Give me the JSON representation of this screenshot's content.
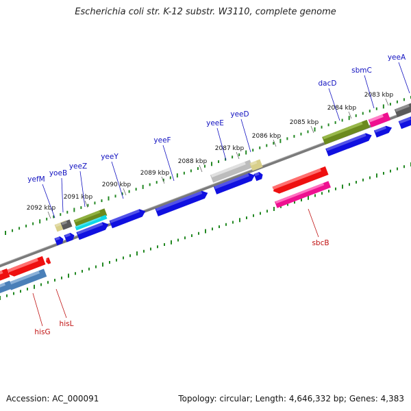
{
  "header": {
    "title": "Escherichia coli str. K-12 substr. W3110, complete genome"
  },
  "footer": {
    "accession": "Accession: AC_000091",
    "summary": "Topology: circular; Length: 4,646,332 bp; Genes: 4,383"
  },
  "ruler": {
    "ticks": [
      {
        "label": "2092 kbp"
      },
      {
        "label": "2091 kbp"
      },
      {
        "label": "2090 kbp"
      },
      {
        "label": "2089 kbp"
      },
      {
        "label": "2088 kbp"
      },
      {
        "label": "2087 kbp"
      },
      {
        "label": "2086 kbp"
      },
      {
        "label": "2085 kbp"
      },
      {
        "label": "2084 kbp"
      },
      {
        "label": "2083 kbp"
      }
    ]
  },
  "genes_top": [
    {
      "label": "yefM"
    },
    {
      "label": "yoeB"
    },
    {
      "label": "yeeZ"
    },
    {
      "label": "yeeY"
    },
    {
      "label": "yeeF"
    },
    {
      "label": "yeeE"
    },
    {
      "label": "yeeD"
    },
    {
      "label": "dacD"
    },
    {
      "label": "sbmC"
    },
    {
      "label": "yeeA"
    }
  ],
  "genes_bottom": [
    {
      "label": "hisG"
    },
    {
      "label": "hisL"
    },
    {
      "label": "sbcB"
    }
  ],
  "colors": {
    "forward_label": "#1010c0",
    "reverse_label": "#c01010",
    "blue": "#1010e0",
    "red": "#ee1010",
    "pink": "#ee1090",
    "olive": "#6b8a1e",
    "grey_dark": "#5a5a5a",
    "grey_light": "#bcbcbc",
    "khaki": "#d8cf8a",
    "cyan": "#10d8e8",
    "steel": "#4a7fb8",
    "tick_green": "#228822",
    "backbone": "#7a7a7a"
  }
}
